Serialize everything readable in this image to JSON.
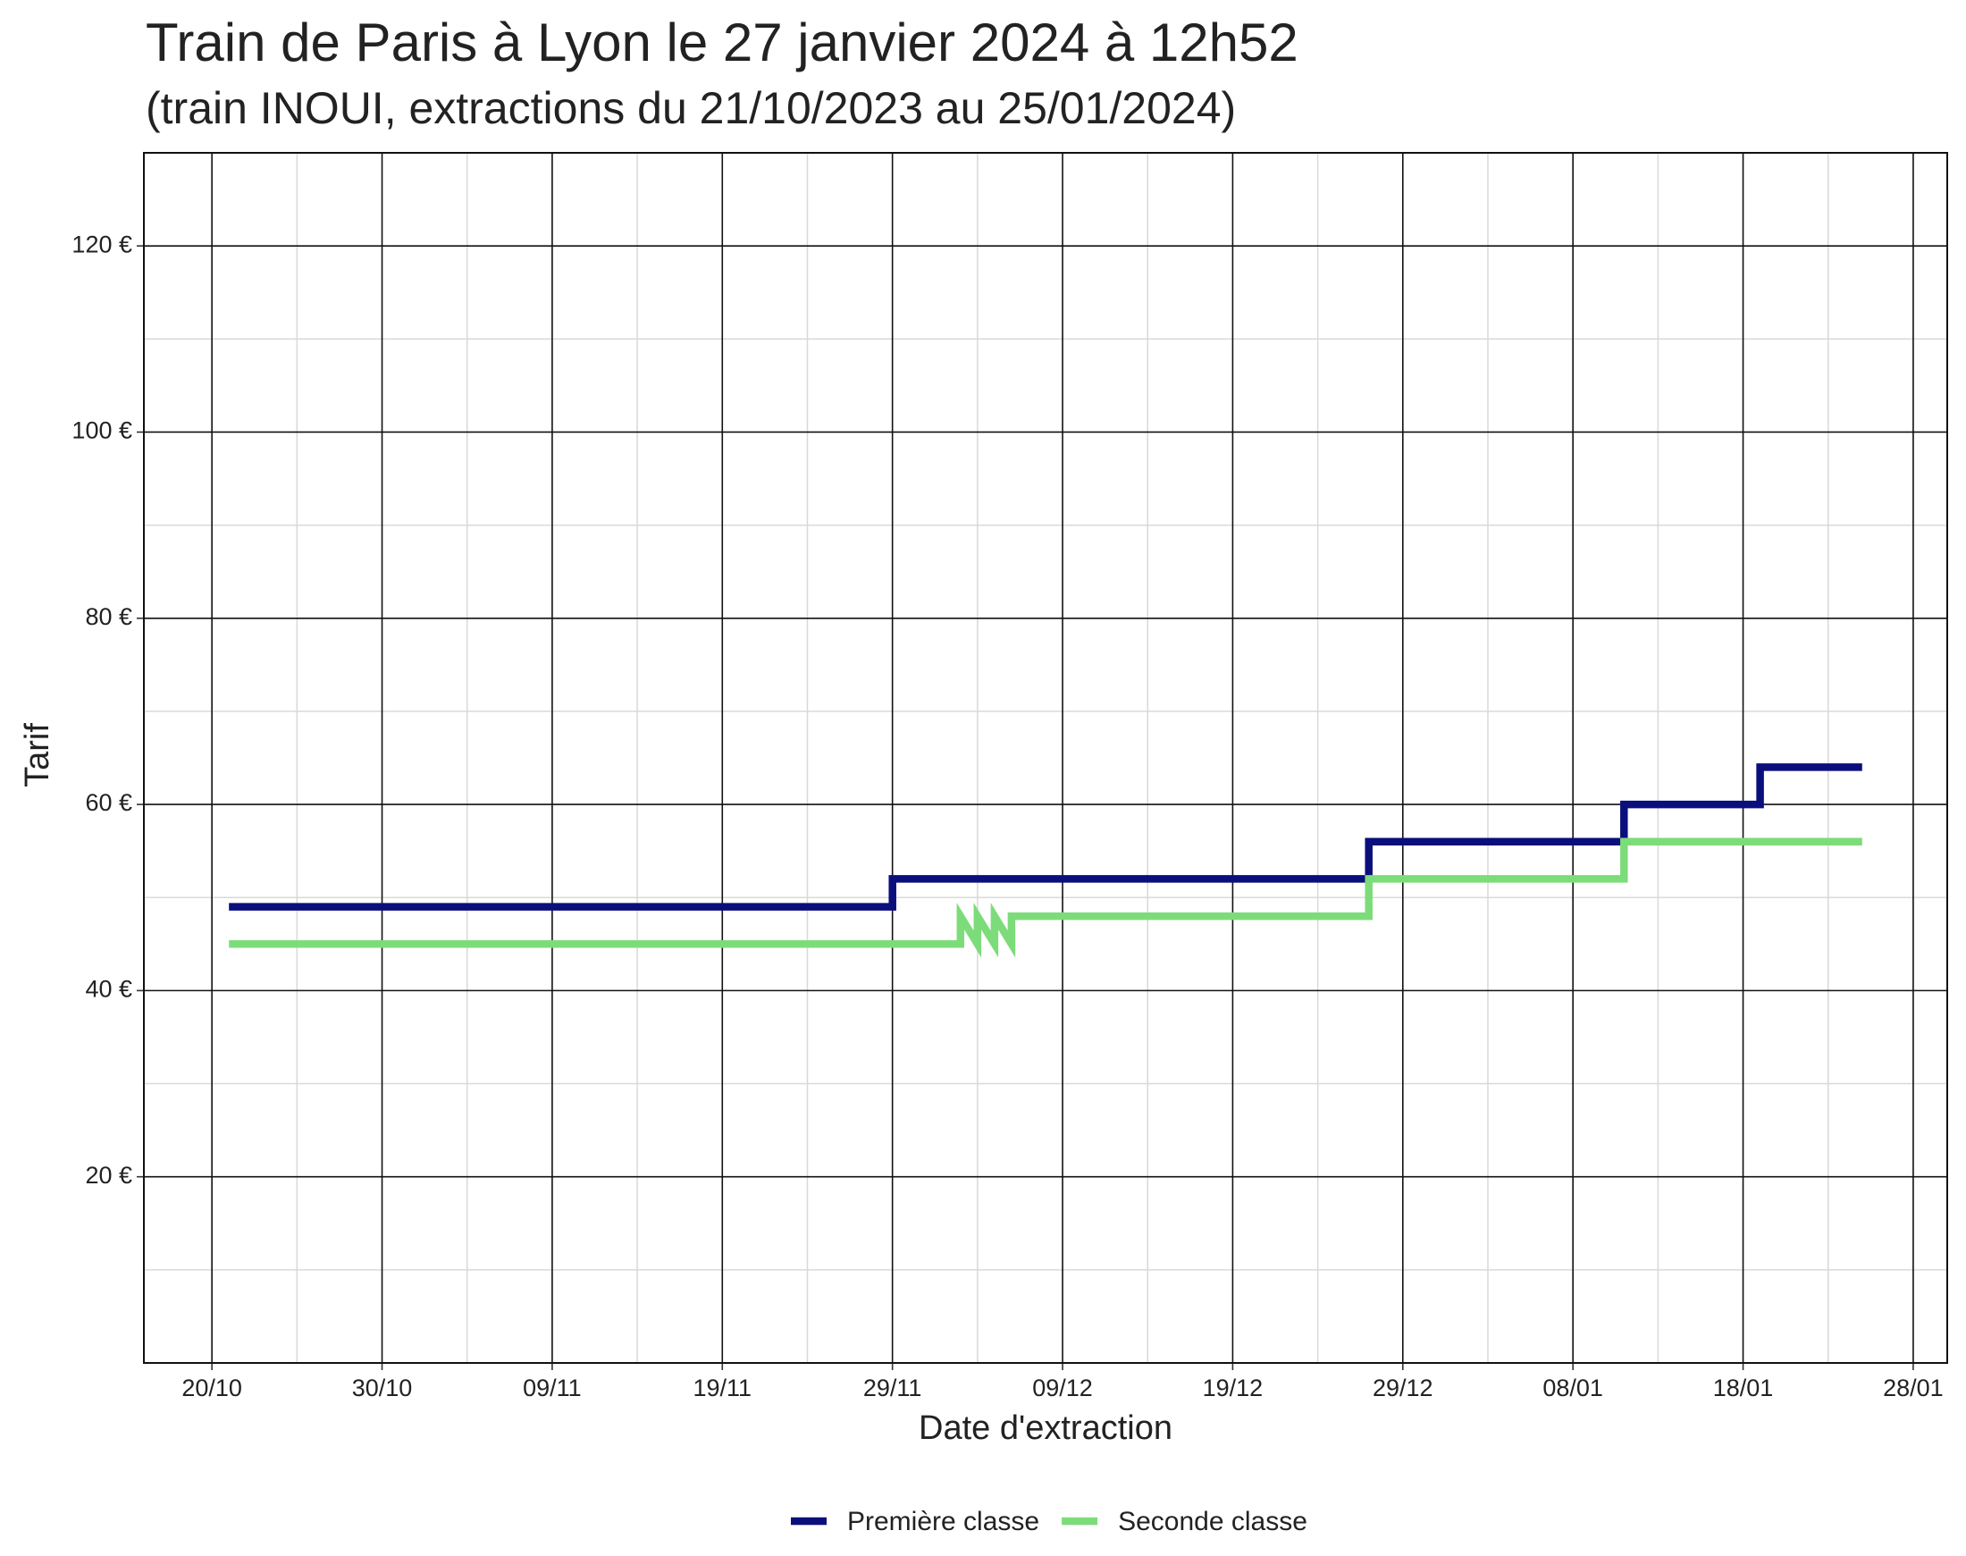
{
  "chart_data": {
    "type": "line",
    "title": "Train de Paris à Lyon le 27 janvier 2024 à 12h52",
    "subtitle": "(train INOUI, extractions du 21/10/2023 au 25/01/2024)",
    "x_label": "Date d'extraction",
    "y_label": "Tarif",
    "xlim": [
      "16/10",
      "30/01"
    ],
    "xticks": [
      "20/10",
      "30/10",
      "09/11",
      "19/11",
      "29/11",
      "09/12",
      "19/12",
      "29/12",
      "08/01",
      "18/01",
      "28/01"
    ],
    "ylim": [
      0,
      130
    ],
    "yticks": [
      {
        "value": 20,
        "label": "20 €"
      },
      {
        "value": 40,
        "label": "40 €"
      },
      {
        "value": 60,
        "label": "60 €"
      },
      {
        "value": 80,
        "label": "80 €"
      },
      {
        "value": 100,
        "label": "100 €"
      },
      {
        "value": 120,
        "label": "120 €"
      }
    ],
    "grid": true,
    "legend_position": "bottom",
    "series": [
      {
        "name": "Première classe",
        "color": "#0b0f7c",
        "x": [
          "21/10",
          "29/11",
          "29/11",
          "27/12",
          "27/12",
          "11/01",
          "11/01",
          "19/01",
          "19/01",
          "25/01"
        ],
        "values": [
          49,
          49,
          52,
          52,
          56,
          56,
          60,
          60,
          64,
          64
        ]
      },
      {
        "name": "Seconde classe",
        "color": "#7ddc7a",
        "x": [
          "21/10",
          "03/12",
          "03/12",
          "04/12",
          "04/12",
          "05/12",
          "05/12",
          "06/12",
          "06/12",
          "27/12",
          "27/12",
          "11/01",
          "11/01",
          "25/01"
        ],
        "values": [
          45,
          45,
          48,
          45,
          48,
          45,
          48,
          45,
          48,
          48,
          52,
          52,
          56,
          56
        ]
      }
    ]
  }
}
